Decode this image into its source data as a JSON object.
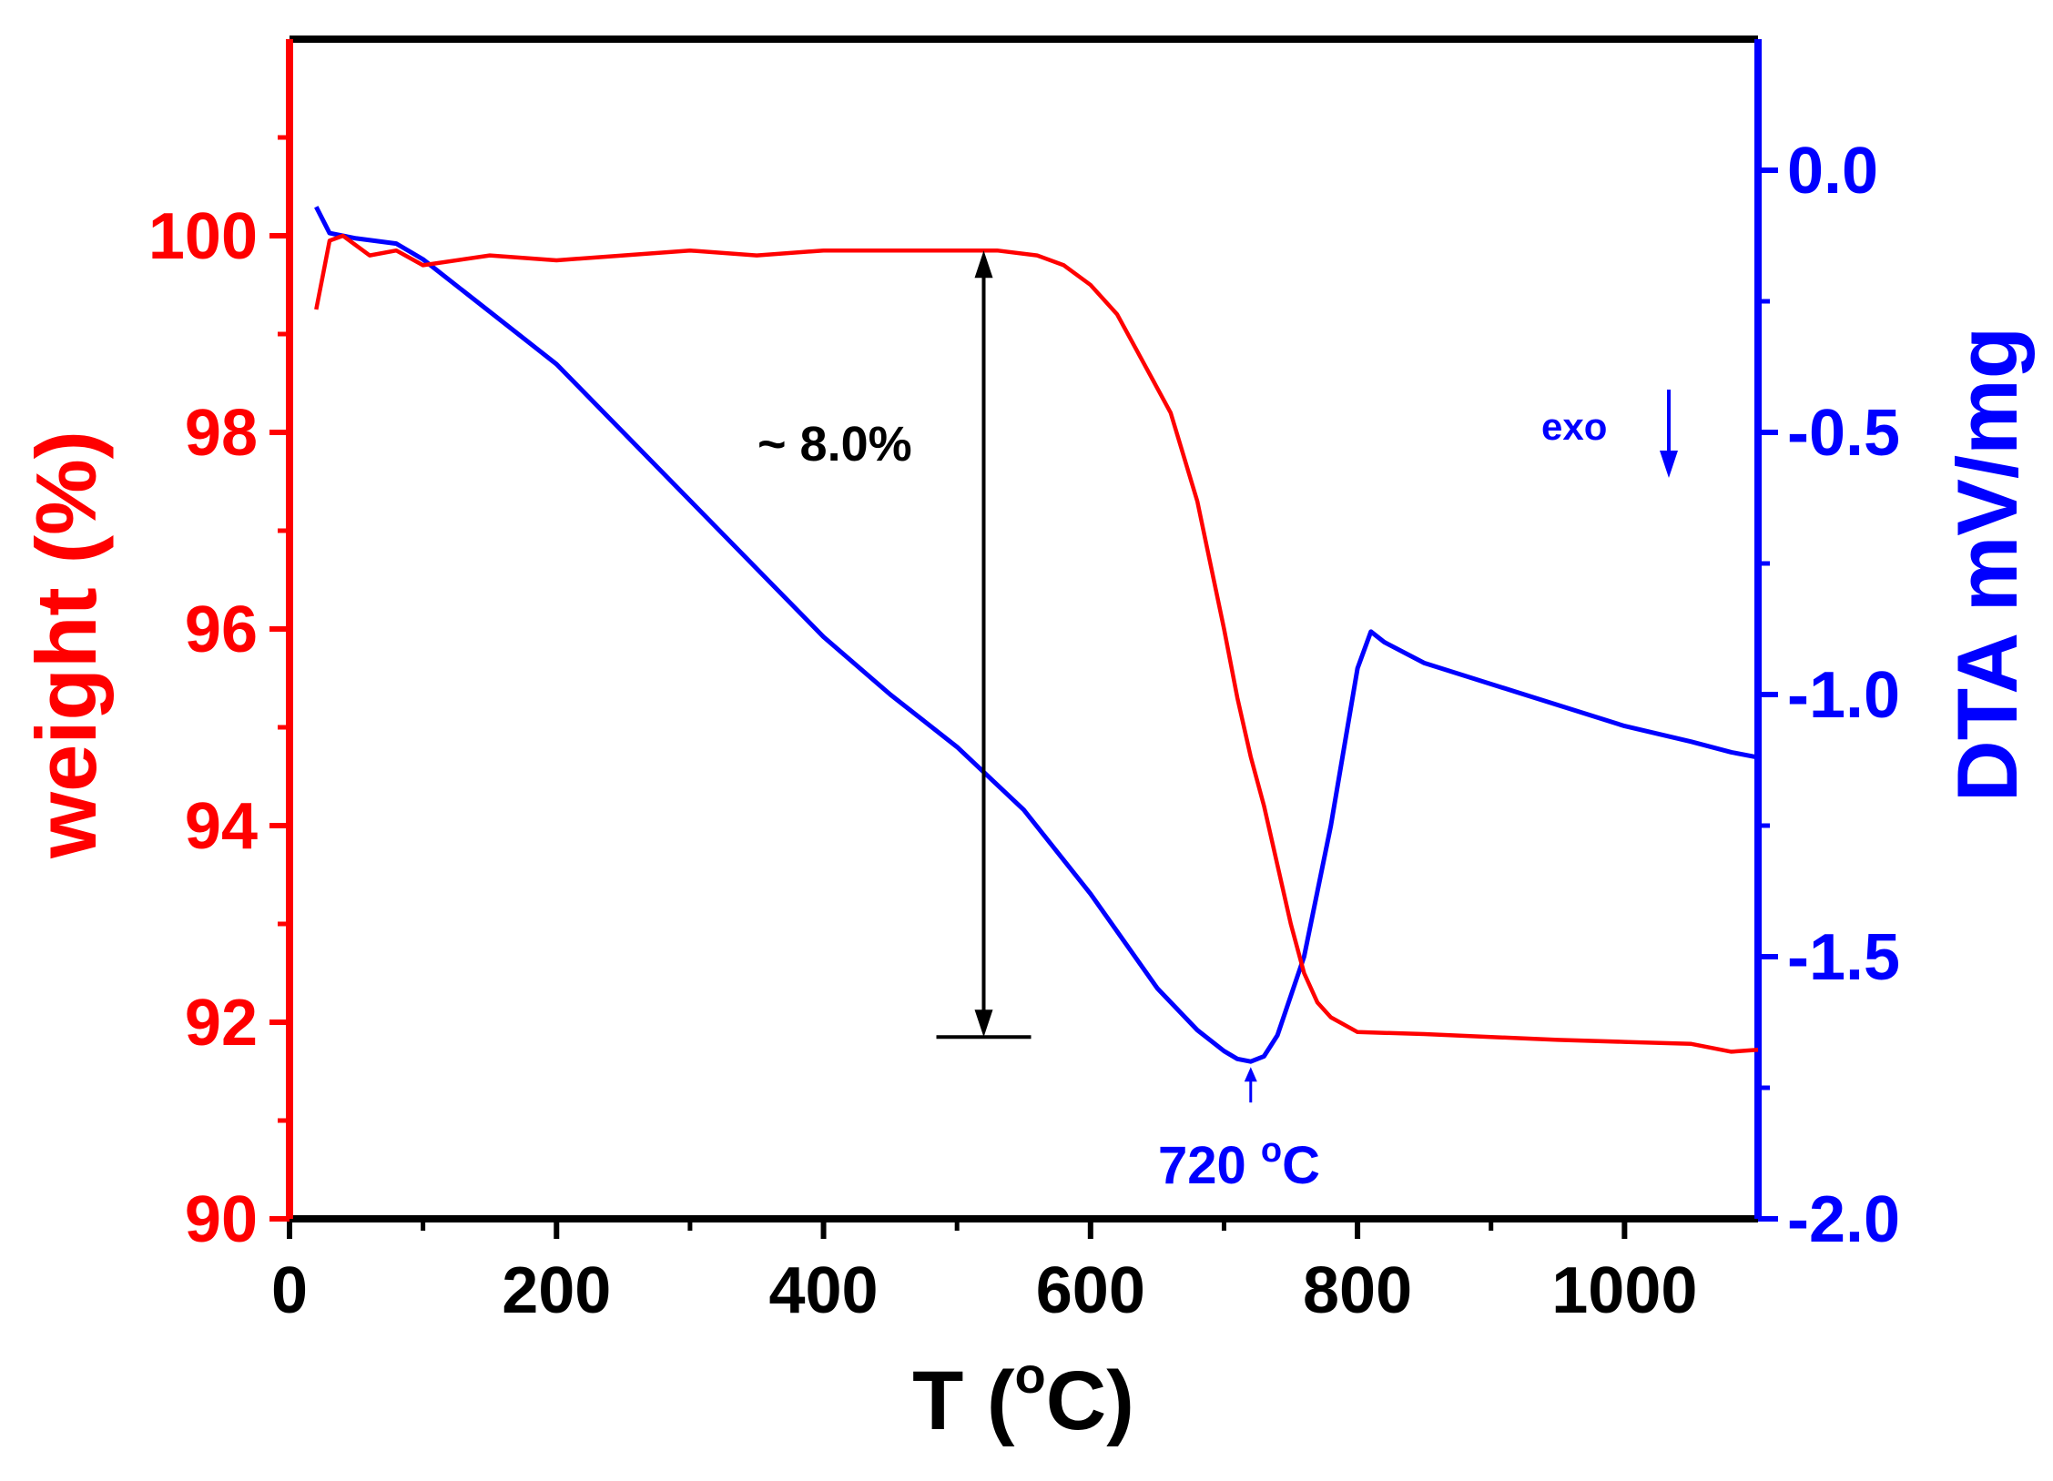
{
  "chart_data": {
    "type": "line",
    "xlabel_prefix": "T (",
    "xlabel_deg": "o",
    "xlabel_suffix": "C)",
    "ylabel_left": "weight (%)",
    "ylabel_right": "DTA mV/mg",
    "xlim": [
      0,
      1100
    ],
    "ylim_left": [
      90,
      102
    ],
    "ylim_right": [
      -2.0,
      0.25
    ],
    "x_ticks": [
      0,
      200,
      400,
      600,
      800,
      1000
    ],
    "x_tick_labels": [
      "0",
      "200",
      "400",
      "600",
      "800",
      "1000"
    ],
    "y_left_ticks": [
      90,
      92,
      94,
      96,
      98,
      100
    ],
    "y_left_tick_labels": [
      "90",
      "92",
      "94",
      "96",
      "98",
      "100"
    ],
    "y_right_ticks": [
      -2.0,
      -1.5,
      -1.0,
      -0.5,
      0.0
    ],
    "y_right_tick_labels": [
      "-2.0",
      "-1.5",
      "-1.0",
      "-0.5",
      "0.0"
    ],
    "colors": {
      "weight": "#ff0000",
      "dta": "#0000ff",
      "axis": "#000000"
    },
    "series": [
      {
        "name": "weight",
        "axis": "left",
        "x": [
          20,
          25,
          30,
          40,
          60,
          80,
          100,
          150,
          200,
          250,
          300,
          350,
          400,
          450,
          500,
          530,
          560,
          580,
          600,
          620,
          640,
          660,
          680,
          700,
          710,
          720,
          730,
          740,
          750,
          760,
          770,
          780,
          800,
          850,
          900,
          950,
          1000,
          1050,
          1080,
          1100
        ],
        "values": [
          99.25,
          99.6,
          99.95,
          100.0,
          99.8,
          99.85,
          99.7,
          99.8,
          99.75,
          99.8,
          99.85,
          99.8,
          99.85,
          99.85,
          99.85,
          99.85,
          99.8,
          99.7,
          99.5,
          99.2,
          98.7,
          98.2,
          97.3,
          96.0,
          95.3,
          94.7,
          94.2,
          93.6,
          93.0,
          92.5,
          92.2,
          92.05,
          91.9,
          91.88,
          91.85,
          91.82,
          91.8,
          91.78,
          91.7,
          91.72
        ]
      },
      {
        "name": "dta",
        "axis": "right",
        "x": [
          20,
          30,
          50,
          80,
          100,
          150,
          200,
          250,
          300,
          350,
          400,
          450,
          500,
          550,
          600,
          650,
          680,
          700,
          710,
          720,
          730,
          740,
          760,
          780,
          800,
          810,
          820,
          850,
          900,
          950,
          1000,
          1050,
          1080,
          1100
        ],
        "values": [
          -0.07,
          -0.12,
          -0.13,
          -0.14,
          -0.17,
          -0.27,
          -0.37,
          -0.5,
          -0.63,
          -0.76,
          -0.89,
          -1.0,
          -1.1,
          -1.22,
          -1.38,
          -1.56,
          -1.64,
          -1.68,
          -1.695,
          -1.7,
          -1.69,
          -1.65,
          -1.5,
          -1.25,
          -0.95,
          -0.88,
          -0.9,
          -0.94,
          -0.98,
          -1.02,
          -1.06,
          -1.09,
          -1.11,
          -1.12
        ]
      }
    ],
    "annotations": {
      "mass_loss": "~ 8.0%",
      "peak_prefix": "720 ",
      "peak_deg": "o",
      "peak_suffix": "C",
      "peak_x": 720,
      "peak_y": -1.7,
      "bracket_x": 520,
      "bracket_top": 99.85,
      "bracket_bottom": 91.85,
      "exo_label": "exo"
    }
  }
}
